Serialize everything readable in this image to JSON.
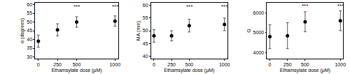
{
  "chart_data": [
    {
      "type": "scatter",
      "x": [
        0,
        250,
        500,
        1000
      ],
      "values": [
        39,
        45.5,
        50,
        50.5
      ],
      "errors": [
        3.5,
        3.5,
        3,
        3
      ],
      "xlabel": "Ethamsylate dose (μM)",
      "ylabel": "α (degrees)",
      "color": "#000000",
      "marker": "circle",
      "xlim": [
        -40,
        1040
      ],
      "xticks": [
        0,
        250,
        500,
        1000
      ],
      "ylim": [
        29,
        61
      ],
      "yticks": [
        30,
        35,
        40,
        45,
        50,
        55,
        60
      ],
      "annotations": [
        {
          "x": 500,
          "y": 59,
          "text": "***"
        },
        {
          "x": 1000,
          "y": 59,
          "text": "***"
        }
      ]
    },
    {
      "type": "scatter",
      "x": [
        0,
        250,
        500,
        1000
      ],
      "values": [
        48,
        48,
        52,
        52.5
      ],
      "errors": [
        2.5,
        2,
        2.5,
        2.5
      ],
      "xlabel": "Ethamsylate dose (μM)",
      "ylabel": "MA (mm)",
      "color": "#000000",
      "marker": "circle",
      "xlim": [
        -40,
        1040
      ],
      "xticks": [
        0,
        250,
        500,
        1000
      ],
      "ylim": [
        39,
        61
      ],
      "yticks": [
        40,
        45,
        50,
        55,
        60
      ],
      "annotations": [
        {
          "x": 500,
          "y": 59.5,
          "text": "***"
        },
        {
          "x": 1000,
          "y": 59.5,
          "text": "***"
        }
      ]
    },
    {
      "type": "scatter",
      "x": [
        0,
        250,
        500,
        1000
      ],
      "values": [
        4800,
        4850,
        5550,
        5600
      ],
      "errors": [
        600,
        650,
        500,
        500
      ],
      "xlabel": "Ethamsylate dose (μM)",
      "ylabel": "G",
      "color": "#000000",
      "marker": "circle",
      "xlim": [
        -40,
        1040
      ],
      "xticks": [
        0,
        250,
        500,
        1000
      ],
      "ylim": [
        3700,
        6500
      ],
      "yticks": [
        4000,
        5000,
        6000
      ],
      "annotations": [
        {
          "x": 500,
          "y": 6330,
          "text": "***"
        },
        {
          "x": 1000,
          "y": 6330,
          "text": "***"
        }
      ]
    }
  ]
}
